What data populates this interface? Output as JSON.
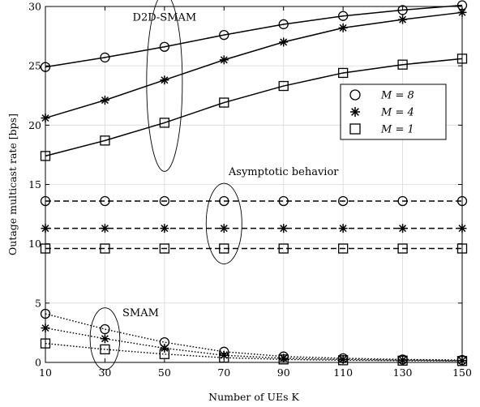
{
  "chart_data": {
    "type": "line",
    "title": "",
    "xlabel": "Number of UEs K",
    "ylabel": "Outage multicast rate [bps]",
    "xlim": [
      10,
      150
    ],
    "ylim": [
      0,
      30
    ],
    "xticks": [
      10,
      30,
      50,
      70,
      90,
      110,
      130,
      150
    ],
    "yticks": [
      0,
      5,
      10,
      15,
      20,
      25,
      30
    ],
    "grid": true,
    "legend_position": "right",
    "x": [
      10,
      30,
      50,
      70,
      90,
      110,
      130,
      150
    ],
    "series": [
      {
        "name": "M = 8",
        "group": "D2D-SMAM",
        "marker": "circle",
        "line": "solid",
        "values": [
          24.9,
          25.7,
          26.6,
          27.6,
          28.5,
          29.2,
          29.7,
          30.1
        ]
      },
      {
        "name": "M = 4",
        "group": "D2D-SMAM",
        "marker": "star",
        "line": "solid",
        "values": [
          20.6,
          22.1,
          23.8,
          25.5,
          27.0,
          28.2,
          28.9,
          29.5
        ]
      },
      {
        "name": "M = 1",
        "group": "D2D-SMAM",
        "marker": "square",
        "line": "solid",
        "values": [
          17.4,
          18.7,
          20.2,
          21.9,
          23.3,
          24.4,
          25.1,
          25.6
        ]
      },
      {
        "name": "M = 8",
        "group": "Asymptotic behavior",
        "marker": "circle",
        "line": "dashed",
        "values": [
          13.6,
          13.6,
          13.6,
          13.6,
          13.6,
          13.6,
          13.6,
          13.6
        ]
      },
      {
        "name": "M = 4",
        "group": "Asymptotic behavior",
        "marker": "star",
        "line": "dashed",
        "values": [
          11.3,
          11.3,
          11.3,
          11.3,
          11.3,
          11.3,
          11.3,
          11.3
        ]
      },
      {
        "name": "M = 1",
        "group": "Asymptotic behavior",
        "marker": "square",
        "line": "dashed",
        "values": [
          9.6,
          9.6,
          9.6,
          9.6,
          9.6,
          9.6,
          9.6,
          9.6
        ]
      },
      {
        "name": "M = 8",
        "group": "SMAM",
        "marker": "circle",
        "line": "dotted",
        "values": [
          4.1,
          2.8,
          1.7,
          0.9,
          0.5,
          0.35,
          0.25,
          0.2
        ]
      },
      {
        "name": "M = 4",
        "group": "SMAM",
        "marker": "star",
        "line": "dotted",
        "values": [
          2.9,
          2.0,
          1.2,
          0.6,
          0.35,
          0.25,
          0.2,
          0.15
        ]
      },
      {
        "name": "M = 1",
        "group": "SMAM",
        "marker": "square",
        "line": "dotted",
        "values": [
          1.6,
          1.1,
          0.7,
          0.4,
          0.25,
          0.18,
          0.15,
          0.12
        ]
      }
    ],
    "annotations": [
      {
        "text": "D2D-SMAM",
        "x": 50,
        "y": 28.8,
        "ellipse": {
          "cx": 50,
          "cy": 23.6,
          "rx": 6,
          "ry": 7.5
        }
      },
      {
        "text": "Asymptotic behavior",
        "x": 90,
        "y": 15.8,
        "ellipse": {
          "cx": 70,
          "cy": 11.7,
          "rx": 6,
          "ry": 3.4
        }
      },
      {
        "text": "SMAM",
        "x": 42,
        "y": 3.9,
        "ellipse": {
          "cx": 30,
          "cy": 2.0,
          "rx": 5,
          "ry": 2.6
        }
      }
    ],
    "legend": [
      {
        "label": "M = 8",
        "marker": "circle"
      },
      {
        "label": "M = 4",
        "marker": "star"
      },
      {
        "label": "M = 1",
        "marker": "square"
      }
    ]
  }
}
